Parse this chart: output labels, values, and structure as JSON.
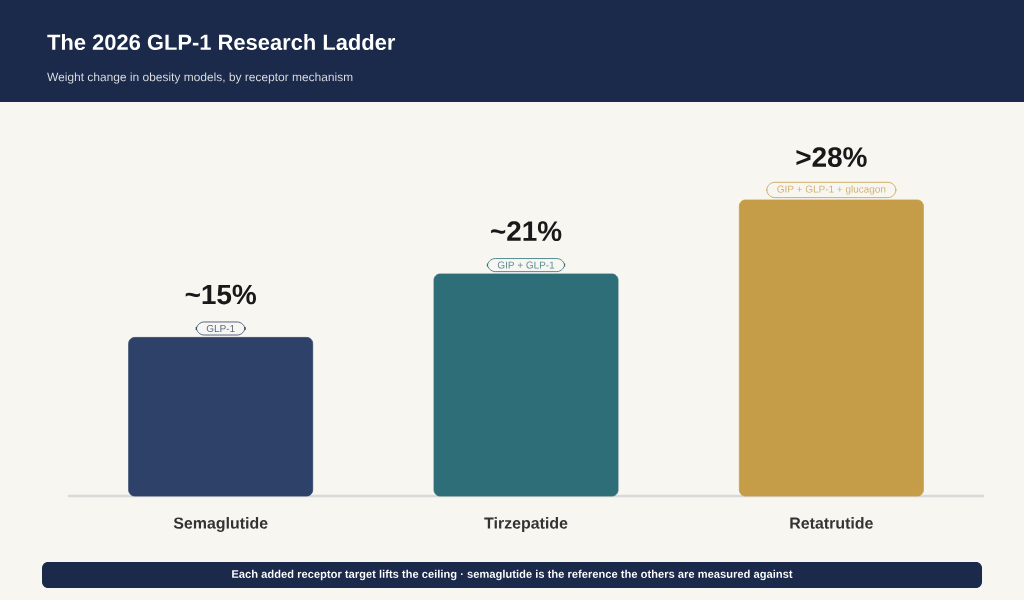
{
  "chart_data": {
    "type": "bar",
    "title": "The 2026 GLP-1 Research Ladder",
    "subtitle": "Weight change in obesity models, by receptor mechanism",
    "categories": [
      "Semaglutide",
      "Tirzepatide",
      "Retatrutide"
    ],
    "values": [
      15,
      21,
      28
    ],
    "value_labels": [
      "~15%",
      "~21%",
      ">28%"
    ],
    "colors": [
      "#2d4169",
      "#2e6e78",
      "#c59d48"
    ],
    "annotations": [
      {
        "text": "GLP-1",
        "x": "Semaglutide",
        "y": 15
      },
      {
        "text": "GIP + GLP-1",
        "x": "Tirzepatide",
        "y": 21
      },
      {
        "text": "GIP + GLP-1 + glucagon",
        "x": "Retatrutide",
        "y": 28
      },
      "Each added receptor target lifts the ceiling  ·  semaglutide is the reference the others are measured against"
    ]
  }
}
